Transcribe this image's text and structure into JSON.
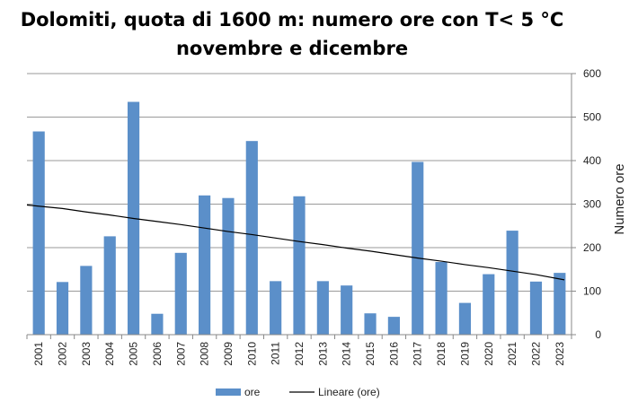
{
  "chart_data": {
    "type": "bar",
    "title": "Dolomiti, quota di 1600 m: numero ore con T< 5 °C",
    "subtitle": "novembre e dicembre",
    "ylabel": "Numero ore",
    "xlabel": "",
    "ylim": [
      0,
      600
    ],
    "yticks": [
      0,
      100,
      200,
      300,
      400,
      500,
      600
    ],
    "y_axis_side": "right",
    "grid": true,
    "legend_position": "bottom",
    "categories": [
      "2001",
      "2002",
      "2003",
      "2004",
      "2005",
      "2006",
      "2007",
      "2008",
      "2009",
      "2010",
      "2011",
      "2012",
      "2013",
      "2014",
      "2015",
      "2016",
      "2017",
      "2018",
      "2019",
      "2020",
      "2021",
      "2022",
      "2023"
    ],
    "series": [
      {
        "name": "ore",
        "type": "bar",
        "color": "#5b8fc9",
        "values": [
          467,
          121,
          158,
          226,
          535,
          48,
          188,
          320,
          314,
          445,
          123,
          318,
          123,
          113,
          49,
          41,
          397,
          167,
          73,
          139,
          239,
          122,
          142
        ]
      },
      {
        "name": "Lineare (ore)",
        "type": "line",
        "color": "#000000",
        "values": [
          298,
          290,
          282,
          275,
          267,
          260,
          253,
          245,
          237,
          230,
          222,
          214,
          207,
          199,
          192,
          184,
          176,
          169,
          161,
          154,
          146,
          138,
          126
        ]
      }
    ]
  }
}
